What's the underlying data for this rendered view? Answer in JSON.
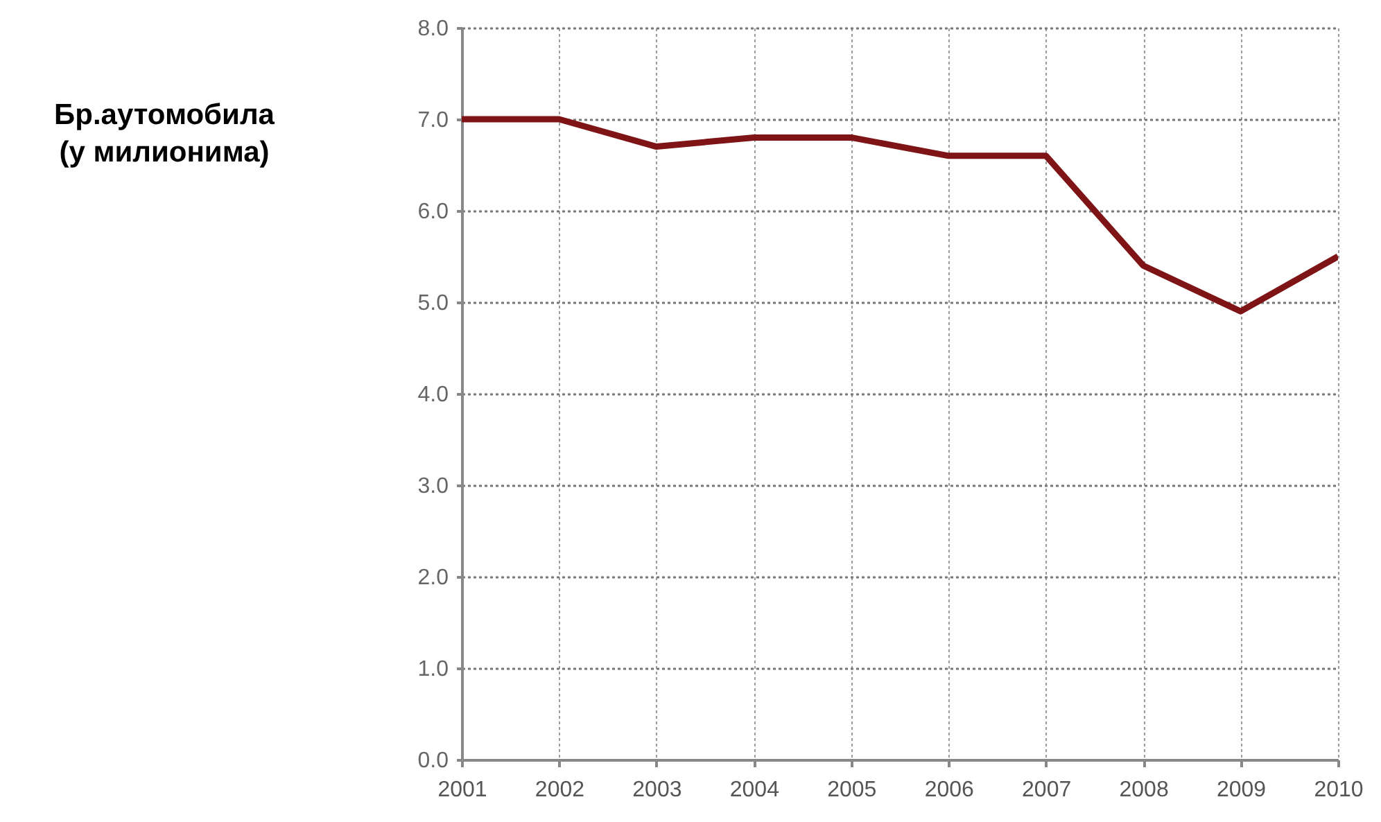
{
  "chart_data": {
    "type": "line",
    "ylabel": "Бр.аутомобила\n(у милионима)",
    "categories": [
      "2001",
      "2002",
      "2003",
      "2004",
      "2005",
      "2006",
      "2007",
      "2008",
      "2009",
      "2010"
    ],
    "series": [
      {
        "color": "#7f1416",
        "values": [
          7.0,
          7.0,
          6.7,
          6.8,
          6.8,
          6.6,
          6.6,
          5.4,
          4.9,
          5.5
        ]
      }
    ],
    "ylim": [
      0,
      8
    ],
    "yticks": [
      {
        "value": 0,
        "label": "0.0"
      },
      {
        "value": 1,
        "label": "1.0"
      },
      {
        "value": 2,
        "label": "2.0"
      },
      {
        "value": 3,
        "label": "3.0"
      },
      {
        "value": 4,
        "label": "4.0"
      },
      {
        "value": 5,
        "label": "5.0"
      },
      {
        "value": 6,
        "label": "6.0"
      },
      {
        "value": 7,
        "label": "7.0"
      },
      {
        "value": 8,
        "label": "8.0"
      }
    ],
    "grid": true,
    "line_style": "solid",
    "marker": "none"
  }
}
